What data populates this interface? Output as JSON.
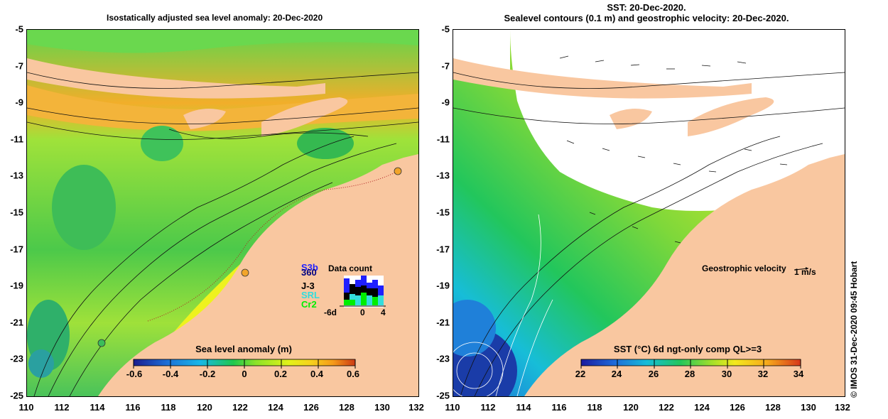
{
  "left_panel": {
    "title": "Isostatically adjusted sea level anomaly: 20-Dec-2020",
    "colorbar_label": "Sea level anomaly (m)",
    "colorbar_ticks": [
      "-0.6",
      "-0.4",
      "-0.2",
      "0",
      "0.2",
      "0.4",
      "0.6"
    ],
    "data_count": {
      "title": "Data count",
      "missions": [
        "S3b",
        "360",
        "J-3",
        "SRL",
        "Cr2"
      ],
      "mission_colors": [
        "#1f1fff",
        "#000080",
        "#000000",
        "#33dddd",
        "#00ee00"
      ],
      "x_ticks": [
        "-6d",
        "0",
        "4"
      ]
    }
  },
  "right_panel": {
    "title_line1": "SST: 20-Dec-2020.",
    "title_line2": "Sealevel contours (0.1 m) and geostrophic velocity: 20-Dec-2020.",
    "colorbar_label": "SST (°C) 6d ngt-only comp QL>=3",
    "colorbar_ticks": [
      "22",
      "24",
      "26",
      "28",
      "30",
      "32",
      "34"
    ],
    "velocity_label": "Geostrophic velocity",
    "velocity_scale": "1 m/s"
  },
  "axes": {
    "y_ticks": [
      "-5",
      "-7",
      "-9",
      "-11",
      "-13",
      "-15",
      "-17",
      "-19",
      "-21",
      "-23",
      "-25"
    ],
    "x_ticks": [
      "110",
      "112",
      "114",
      "116",
      "118",
      "120",
      "122",
      "124",
      "126",
      "128",
      "130",
      "132"
    ]
  },
  "credit": "© IMOS 31-Dec-2020 09:45 Hobart",
  "colors": {
    "land": "#f9c7a0",
    "anomaly_scale": [
      "#1b1b8e",
      "#1e6fd6",
      "#19b8e8",
      "#1fc84d",
      "#8be22a",
      "#e2f21a",
      "#f7d21c",
      "#f59a1a",
      "#cc3a14"
    ],
    "sst_scale": [
      "#1a1a9e",
      "#1f6ad9",
      "#17bdd8",
      "#22c65c",
      "#a7e02a",
      "#f4e91d",
      "#f6a81c",
      "#d6361a"
    ]
  }
}
